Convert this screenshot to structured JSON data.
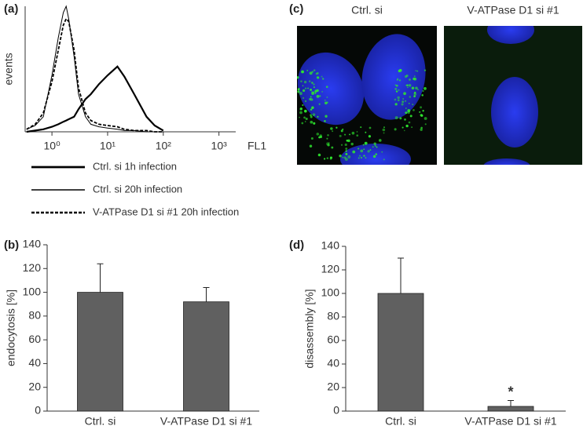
{
  "chart_data": [
    {
      "type": "line",
      "panel_label": "(a)",
      "ylabel": "events",
      "xlabel": "FL1",
      "xscale": "log",
      "xlim": [
        0.33,
        2000
      ],
      "ylim": [
        0,
        100
      ],
      "xticks": [
        {
          "value": 1,
          "label": "10⁰"
        },
        {
          "value": 10,
          "label": "10¹"
        },
        {
          "value": 100,
          "label": "10²"
        },
        {
          "value": 1000,
          "label": "10³"
        }
      ],
      "x": [
        0.35,
        0.5,
        0.7,
        1,
        1.3,
        1.6,
        1.8,
        2,
        2.5,
        3,
        4,
        5,
        7,
        10,
        15,
        20,
        30,
        50,
        70,
        100
      ],
      "series": [
        {
          "name": "Ctrl. si 1h infection",
          "color": "#000000",
          "style": "thick",
          "values": [
            0,
            1,
            2,
            4,
            6,
            8,
            9,
            10,
            12,
            18,
            26,
            30,
            38,
            45,
            52,
            44,
            30,
            12,
            5,
            1
          ]
        },
        {
          "name": "Ctrl. si 20h infection",
          "color": "#000000",
          "style": "thin",
          "values": [
            2,
            5,
            12,
            45,
            75,
            95,
            100,
            90,
            60,
            30,
            12,
            6,
            4,
            3,
            2,
            1,
            1,
            0,
            0,
            0
          ]
        },
        {
          "name": "V-ATPase D1 si #1 20h infection",
          "color": "#000000",
          "style": "dashed",
          "values": [
            2,
            6,
            15,
            40,
            65,
            85,
            90,
            88,
            65,
            35,
            15,
            9,
            6,
            5,
            4,
            2,
            1,
            1,
            0,
            0
          ]
        }
      ]
    },
    {
      "type": "bar",
      "panel_label": "(b)",
      "ylabel": "endocytosis [%]",
      "color": "#606060",
      "categories": [
        "Ctrl. si",
        "V-ATPase D1 si #1"
      ],
      "values": [
        100,
        92
      ],
      "errors": [
        24,
        12
      ],
      "ylim": [
        0,
        140
      ],
      "yticks": [
        0,
        20,
        40,
        60,
        80,
        100,
        120,
        140
      ]
    },
    {
      "type": "image",
      "panel_label": "(c)",
      "captions": [
        "Ctrl. si",
        "V-ATPase D1 si #1"
      ]
    },
    {
      "type": "bar",
      "panel_label": "(d)",
      "ylabel": "disassembly [%]",
      "color": "#606060",
      "categories": [
        "Ctrl. si",
        "V-ATPase D1 si #1"
      ],
      "values": [
        100,
        4
      ],
      "errors": [
        30,
        5
      ],
      "annotation": "*",
      "ylim": [
        0,
        140
      ],
      "yticks": [
        0,
        20,
        40,
        60,
        80,
        100,
        120,
        140
      ]
    }
  ]
}
